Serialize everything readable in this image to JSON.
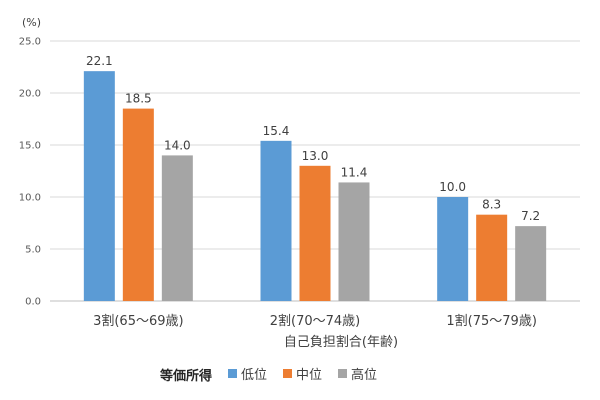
{
  "chart_data": {
    "type": "bar",
    "unit_label": "(%)",
    "xlabel": "自己負担割合(年齢)",
    "ylim": [
      0,
      25
    ],
    "y_ticks": [
      "0.0",
      "5.0",
      "10.0",
      "15.0",
      "20.0",
      "25.0"
    ],
    "y_tick_values": [
      0,
      5,
      10,
      15,
      20,
      25
    ],
    "grid": true,
    "categories": [
      "3割(65〜69歳)",
      "2割(70〜74歳)",
      "1割(75〜79歳)"
    ],
    "series": [
      {
        "name": "低位",
        "color": "#5B9BD5",
        "values": [
          22.1,
          15.4,
          10.0
        ],
        "labels": [
          "22.1",
          "15.4",
          "10.0"
        ]
      },
      {
        "name": "中位",
        "color": "#ED7D31",
        "values": [
          18.5,
          13.0,
          8.3
        ],
        "labels": [
          "18.5",
          "13.0",
          "8.3"
        ]
      },
      {
        "name": "高位",
        "color": "#A5A5A5",
        "values": [
          14.0,
          11.4,
          7.2
        ],
        "labels": [
          "14.0",
          "11.4",
          "7.2"
        ]
      }
    ],
    "legend": {
      "title": "等価所得",
      "position": "bottom"
    }
  }
}
